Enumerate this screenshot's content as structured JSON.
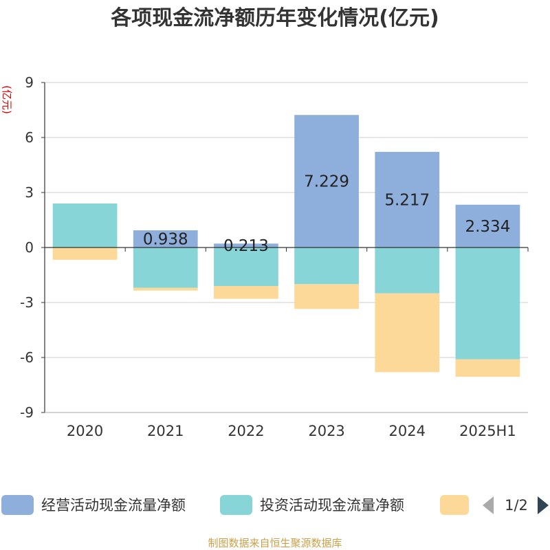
{
  "chart_data": {
    "type": "bar",
    "stacked": true,
    "title": "各项现金流净额历年变化情况(亿元)",
    "ylabel": "(亿元)",
    "categories": [
      "2020",
      "2021",
      "2022",
      "2023",
      "2024",
      "2025H1"
    ],
    "ylim": [
      -9,
      9
    ],
    "yticks": [
      9,
      6,
      3,
      0,
      -3,
      -6,
      -9
    ],
    "grid": true,
    "series": [
      {
        "name": "经营活动现金流量净额",
        "color": "#8eaedb",
        "values": [
          -0.02,
          0.938,
          0.213,
          7.229,
          5.217,
          2.334
        ],
        "labels": [
          "",
          "0.938",
          "0.213",
          "7.229",
          "5.217",
          "2.334"
        ]
      },
      {
        "name": "投资活动现金流量净额",
        "color": "#88d5d8",
        "values": [
          2.4,
          -2.2,
          -2.1,
          -2.0,
          -2.5,
          -6.1
        ],
        "labels": [
          "",
          "",
          "",
          "",
          "",
          ""
        ]
      },
      {
        "name": "",
        "color": "#fdd999",
        "values": [
          -0.65,
          -0.15,
          -0.7,
          -1.35,
          -4.3,
          -0.95
        ],
        "labels": [
          "",
          "",
          "",
          "",
          "",
          ""
        ]
      }
    ],
    "legend": {
      "placement": "bottom",
      "page": "1/2"
    },
    "source": "制图数据来自恒生聚源数据库"
  }
}
